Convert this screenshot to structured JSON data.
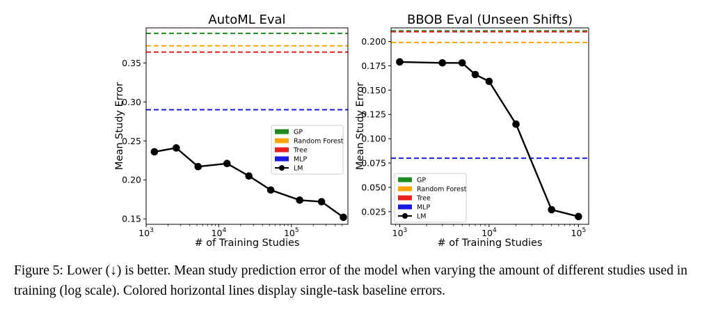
{
  "chart_data": [
    {
      "type": "line",
      "title": "AutoML Eval",
      "xlabel": "# of Training Studies",
      "ylabel": "Mean Study Error",
      "xscale": "log",
      "xlim": [
        1000,
        600000
      ],
      "ylim": [
        0.143,
        0.395
      ],
      "xticks": [
        {
          "value": 1000,
          "base": "10",
          "exp": "3"
        },
        {
          "value": 10000,
          "base": "10",
          "exp": "4"
        },
        {
          "value": 100000,
          "base": "10",
          "exp": "5"
        }
      ],
      "yticks": [
        {
          "value": 0.15,
          "label": "0.15"
        },
        {
          "value": 0.2,
          "label": "0.20"
        },
        {
          "value": 0.25,
          "label": "0.25"
        },
        {
          "value": 0.3,
          "label": "0.30"
        },
        {
          "value": 0.35,
          "label": "0.35"
        }
      ],
      "baselines": [
        {
          "name": "GP",
          "value": 0.388,
          "color": "#1f8a1f"
        },
        {
          "name": "Random Forest",
          "value": 0.372,
          "color": "#ffa500"
        },
        {
          "name": "Tree",
          "value": 0.364,
          "color": "#e8201e"
        },
        {
          "name": "MLP",
          "value": 0.29,
          "color": "#1a1ae0"
        }
      ],
      "series": [
        {
          "name": "LM",
          "color": "#000000",
          "x": [
            1300,
            2600,
            5200,
            13000,
            26000,
            52000,
            130000,
            260000,
            520000
          ],
          "y": [
            0.236,
            0.241,
            0.217,
            0.221,
            0.205,
            0.187,
            0.174,
            0.172,
            0.152
          ]
        }
      ],
      "legend": {
        "position": "right-middle",
        "entries": [
          "GP",
          "Random Forest",
          "Tree",
          "MLP",
          "LM"
        ]
      }
    },
    {
      "type": "line",
      "title": "BBOB Eval (Unseen Shifts)",
      "xlabel": "# of Training Studies",
      "ylabel": "Mean Study Error",
      "xscale": "log",
      "xlim": [
        800,
        130000
      ],
      "ylim": [
        0.012,
        0.214
      ],
      "xticks": [
        {
          "value": 1000,
          "base": "10",
          "exp": "3"
        },
        {
          "value": 10000,
          "base": "10",
          "exp": "4"
        },
        {
          "value": 100000,
          "base": "10",
          "exp": "5"
        }
      ],
      "yticks": [
        {
          "value": 0.025,
          "label": "0.025"
        },
        {
          "value": 0.05,
          "label": "0.050"
        },
        {
          "value": 0.075,
          "label": "0.075"
        },
        {
          "value": 0.1,
          "label": "0.100"
        },
        {
          "value": 0.125,
          "label": "0.125"
        },
        {
          "value": 0.15,
          "label": "0.150"
        },
        {
          "value": 0.175,
          "label": "0.175"
        },
        {
          "value": 0.2,
          "label": "0.200"
        }
      ],
      "baselines": [
        {
          "name": "GP",
          "value": 0.211,
          "color": "#1f8a1f"
        },
        {
          "name": "Random Forest",
          "value": 0.199,
          "color": "#ffa500"
        },
        {
          "name": "Tree",
          "value": 0.21,
          "color": "#e8201e"
        },
        {
          "name": "MLP",
          "value": 0.08,
          "color": "#1a1ae0"
        }
      ],
      "series": [
        {
          "name": "LM",
          "color": "#000000",
          "x": [
            1000,
            3000,
            5000,
            7000,
            10000,
            20000,
            50000,
            100000
          ],
          "y": [
            0.179,
            0.178,
            0.178,
            0.166,
            0.159,
            0.115,
            0.027,
            0.02
          ]
        }
      ],
      "legend": {
        "position": "bottom-left",
        "entries": [
          "GP",
          "Random Forest",
          "Tree",
          "MLP",
          "LM"
        ]
      }
    }
  ],
  "caption": {
    "label": "Figure 5: ",
    "text": "Lower (↓) is better. Mean study prediction error of the model when varying the amount of different studies used in training (log scale). Colored horizontal lines display single-task baseline errors."
  }
}
